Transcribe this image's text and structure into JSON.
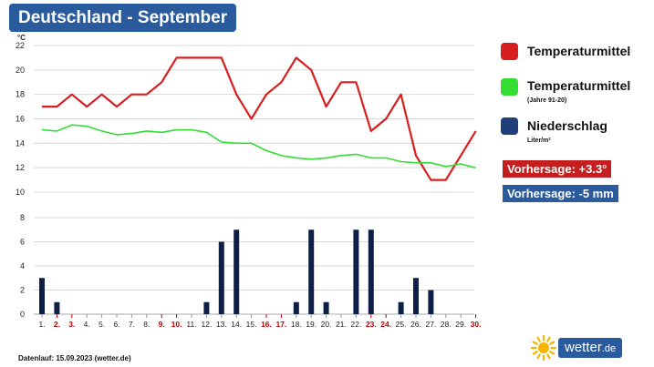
{
  "header": {
    "title": "Deutschland - September"
  },
  "chart_data": [
    {
      "type": "line",
      "ylabel": "°C",
      "ylim": [
        10,
        22
      ],
      "yticks": [
        10,
        12,
        14,
        16,
        18,
        20,
        22
      ],
      "grid": true,
      "series": [
        {
          "name": "Temperaturmittel",
          "color": "#d81e1e",
          "x": [
            1,
            2,
            3,
            4,
            5,
            6,
            7,
            8,
            9,
            10,
            11,
            12,
            13,
            14,
            15,
            16,
            17,
            18,
            19,
            20,
            21,
            22,
            23,
            24,
            25,
            26,
            27,
            28,
            29,
            30
          ],
          "values": [
            17,
            17,
            18,
            17,
            18,
            17,
            18,
            18,
            19,
            21,
            21,
            21,
            21,
            18,
            16,
            18,
            19,
            21,
            20,
            17,
            19,
            19,
            15,
            16,
            18,
            13,
            11,
            11,
            13,
            15
          ]
        },
        {
          "name": "Temperaturmittel (Jahre 91-20)",
          "color": "#33dd33",
          "x": [
            1,
            2,
            3,
            4,
            5,
            6,
            7,
            8,
            9,
            10,
            11,
            12,
            13,
            14,
            15,
            16,
            17,
            18,
            19,
            20,
            21,
            22,
            23,
            24,
            25,
            26,
            27,
            28,
            29,
            30
          ],
          "values": [
            15.1,
            15.0,
            15.5,
            15.4,
            15.0,
            14.7,
            14.8,
            15.0,
            14.9,
            15.1,
            15.1,
            14.9,
            14.1,
            14.0,
            14.0,
            13.4,
            13.0,
            12.8,
            12.7,
            12.8,
            13.0,
            13.1,
            12.8,
            12.8,
            12.5,
            12.4,
            12.4,
            12.1,
            12.3,
            12.0
          ]
        }
      ]
    },
    {
      "type": "bar",
      "ylim": [
        0,
        8
      ],
      "yticks": [
        0,
        2,
        4,
        6,
        8
      ],
      "grid": true,
      "series": [
        {
          "name": "Niederschlag",
          "color": "#0d1f45",
          "x": [
            1,
            2,
            3,
            4,
            5,
            6,
            7,
            8,
            9,
            10,
            11,
            12,
            13,
            14,
            15,
            16,
            17,
            18,
            19,
            20,
            21,
            22,
            23,
            24,
            25,
            26,
            27,
            28,
            29,
            30
          ],
          "values": [
            3,
            1,
            0,
            0,
            0,
            0,
            0,
            0,
            0,
            0,
            0,
            1,
            6,
            7,
            0,
            0,
            0,
            1,
            7,
            1,
            0,
            7,
            7,
            0,
            1,
            3,
            2,
            0,
            0,
            0
          ]
        }
      ],
      "categories": [
        "1.",
        "2.",
        "3.",
        "4.",
        "5.",
        "6.",
        "7.",
        "8.",
        "9.",
        "10.",
        "11.",
        "12.",
        "13.",
        "14.",
        "15.",
        "16.",
        "17.",
        "18.",
        "19.",
        "20.",
        "21.",
        "22.",
        "23.",
        "24.",
        "25.",
        "26.",
        "27.",
        "28.",
        "29.",
        "30."
      ],
      "weekend_days": [
        2,
        3,
        9,
        10,
        16,
        17,
        23,
        24,
        30
      ],
      "weekend_color": "#c00000"
    }
  ],
  "legend": [
    {
      "label": "Temperaturmittel",
      "sub": "",
      "color": "#d81e1e"
    },
    {
      "label": "Temperaturmittel",
      "sub": "(Jahre 91-20)",
      "color": "#33dd33"
    },
    {
      "label": "Niederschlag",
      "sub": "Liter/m²",
      "color": "#1f3f7a"
    }
  ],
  "forecast": {
    "temperature": {
      "text": "Vorhersage: +3.3°",
      "color": "#c41e1e"
    },
    "precipitation": {
      "text": "Vorhersage: -5 mm",
      "color": "#2a5b9f"
    }
  },
  "footer": {
    "datenlauf": "Datenlauf: 15.09.2023 (wetter.de)"
  },
  "brand": {
    "name": "wetter",
    "tld": ".de",
    "sun_color": "#f5b400"
  }
}
